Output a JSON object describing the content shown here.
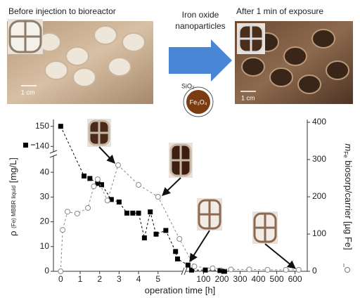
{
  "panels": {
    "before_title": "Before injection to bioreactor",
    "before_scale": "1 cm",
    "middle_label": [
      "Iron oxide",
      "nanoparticles"
    ],
    "shell": "SiO₂",
    "core": "Fe₃O₄",
    "after_title": "After 1 min of exposure",
    "after_scale": "1 cm"
  },
  "chart_data": {
    "type": "line",
    "x_label": "operation time [h]",
    "y_label": [
      "ρ",
      "(Fe) MBBR liquid",
      "[mg/L]"
    ],
    "y2_label": [
      "m",
      "Fe",
      "biosorp/carrier [µg Fe]"
    ],
    "xlim": [
      -0.3,
      640
    ],
    "xbreak": [
      6.2,
      10
    ],
    "xticks": [
      0,
      1,
      2,
      3,
      4,
      5,
      100,
      200,
      300,
      400,
      500,
      600
    ],
    "ylim": [
      0,
      152
    ],
    "ybreak": [
      46,
      138
    ],
    "yticks": [
      0,
      10,
      20,
      30,
      40,
      140,
      150
    ],
    "y2lim": [
      0,
      400
    ],
    "y2ticks": [
      0,
      100,
      200,
      300,
      400
    ],
    "series": [
      {
        "color": "#000000",
        "marker": "square",
        "axis": "y",
        "x": [
          0,
          1.2,
          1.5,
          1.9,
          2.1,
          2.6,
          3.0,
          3.4,
          3.7,
          4.0,
          4.3,
          4.6,
          4.9,
          5.4,
          5.9,
          6.0,
          15,
          35,
          110,
          190,
          215
        ],
        "values": [
          150,
          38.5,
          37.5,
          35.5,
          35,
          29,
          28,
          23.5,
          23.5,
          23.5,
          13.5,
          24,
          15,
          16.5,
          8,
          5,
          2.5,
          0.5,
          0.5,
          0.3,
          0
        ]
      },
      {
        "color": "#888888",
        "marker": "circle-open",
        "axis": "y2",
        "x": [
          0,
          0.1,
          0.35,
          0.85,
          1.4,
          1.7,
          1.9,
          2.4,
          2.95,
          4,
          5,
          6.1,
          50,
          150,
          250,
          350,
          450,
          550,
          620
        ],
        "values": [
          0,
          111,
          160,
          155,
          170,
          228,
          247,
          190,
          285,
          232,
          200,
          87,
          13,
          8,
          5,
          5,
          4,
          4,
          4
        ]
      }
    ]
  }
}
